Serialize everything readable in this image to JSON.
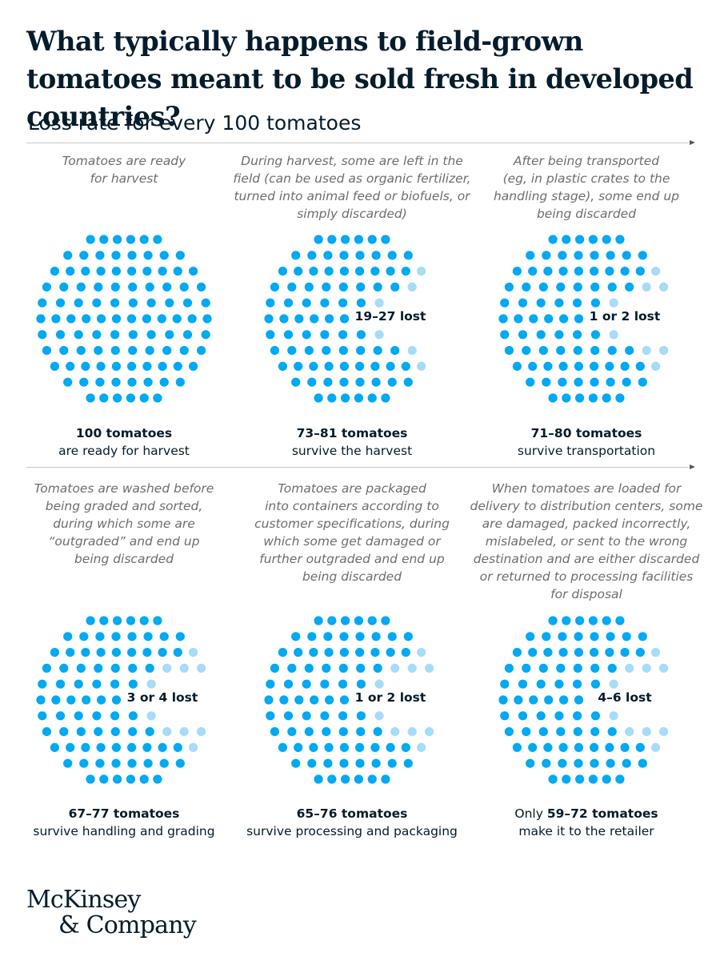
{
  "title": "What typically happens to field-grown tomatoes meant to be sold fresh in developed countries?",
  "subtitle": "Loss rate for every 100 tomatoes",
  "colors": {
    "survivor": "#00a9f4",
    "lost": "#a6dcf8",
    "text": "#051c2c",
    "note": "#6e6e6e"
  },
  "stages": [
    {
      "description": "Tomatoes are ready\nfor harvest",
      "lost_label": "",
      "caption_prefix": "",
      "caption_bold": "100 tomatoes",
      "caption_line2": "are ready for harvest"
    },
    {
      "description": "During harvest, some are left in the\nfield (can be used as organic fertilizer,\nturned into animal feed or biofuels, or\nsimply discarded)",
      "lost_label": "19–27 lost",
      "caption_prefix": "",
      "caption_bold": "73–81 tomatoes",
      "caption_line2": "survive the harvest"
    },
    {
      "description": "After being transported\n(eg, in plastic crates to the\nhandling stage), some end up\nbeing discarded",
      "lost_label": "1 or 2 lost",
      "caption_prefix": "",
      "caption_bold": "71–80 tomatoes",
      "caption_line2": "survive transportation"
    },
    {
      "description": "Tomatoes are washed before\nbeing graded and sorted,\nduring which some are\n“outgraded” and end up\nbeing discarded",
      "lost_label": "3 or 4 lost",
      "caption_prefix": "",
      "caption_bold": "67–77 tomatoes",
      "caption_line2": "survive handling and grading"
    },
    {
      "description": "Tomatoes are packaged\ninto containers according to\ncustomer specifications, during\nwhich some get damaged or\nfurther outgraded and end up\nbeing discarded",
      "lost_label": "1 or 2 lost",
      "caption_prefix": "",
      "caption_bold": "65–76 tomatoes",
      "caption_line2": "survive processing and packaging"
    },
    {
      "description": "When tomatoes are loaded for\ndelivery to distribution centers, some\nare damaged, packed incorrectly,\nmislabeled, or sent to the wrong\ndestination and are either discarded\nor returned to processing facilities\nfor disposal",
      "lost_label": "4–6 lost",
      "caption_prefix": "Only ",
      "caption_bold": "59–72 tomatoes",
      "caption_line2": "make it to the retailer"
    }
  ],
  "chart_data": {
    "type": "dot-matrix",
    "title": "What typically happens to field-grown tomatoes meant to be sold fresh in developed countries?",
    "subtitle": "Loss rate for every 100 tomatoes",
    "total": 100,
    "stages": [
      {
        "stage": "Harvest-ready",
        "remaining_range": [
          100,
          100
        ],
        "lost_range": [
          0,
          0
        ],
        "survivor_dots": 100,
        "lost_dots": 0
      },
      {
        "stage": "Harvest",
        "remaining_range": [
          73,
          81
        ],
        "lost_range": [
          19,
          27
        ],
        "survivor_dots": 76,
        "lost_dots": 5
      },
      {
        "stage": "Transportation",
        "remaining_range": [
          71,
          80
        ],
        "lost_range": [
          1,
          2
        ],
        "survivor_dots": 74,
        "lost_dots": 2
      },
      {
        "stage": "Handling and grading",
        "remaining_range": [
          67,
          77
        ],
        "lost_range": [
          3,
          4
        ],
        "survivor_dots": 72,
        "lost_dots": 4
      },
      {
        "stage": "Processing and packaging",
        "remaining_range": [
          65,
          76
        ],
        "lost_range": [
          1,
          2
        ],
        "survivor_dots": 70,
        "lost_dots": 3
      },
      {
        "stage": "Distribution",
        "remaining_range": [
          59,
          72
        ],
        "lost_range": [
          4,
          6
        ],
        "survivor_dots": 63,
        "lost_dots": 8
      }
    ]
  },
  "logo": {
    "line1": "McKinsey",
    "line2": "& Company"
  }
}
